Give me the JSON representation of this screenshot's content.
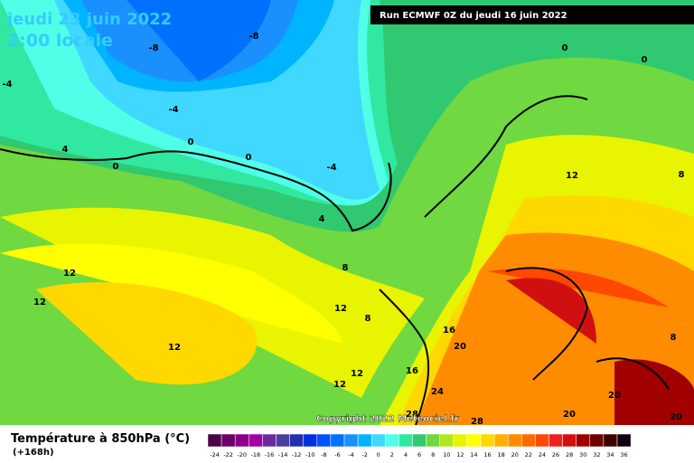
{
  "header": {
    "date": "jeudi 23 juin 2022",
    "time": "2:00 locale",
    "run": "Run ECMWF 0Z du jeudi 16 juin 2022"
  },
  "copyright": "Copyright 2022 Meteociel.fr",
  "legend": {
    "title": "Température à 850hPa (°C)",
    "subtitle": "(+168h)"
  },
  "colorbar": {
    "ticks": [
      -24,
      -22,
      -20,
      -18,
      -16,
      -14,
      -12,
      -10,
      -8,
      -6,
      -4,
      -2,
      0,
      2,
      4,
      6,
      8,
      10,
      12,
      14,
      16,
      18,
      20,
      22,
      24,
      26,
      28,
      30,
      32,
      34,
      36
    ],
    "colors": [
      "#4a0047",
      "#6a006a",
      "#8a0089",
      "#a300a3",
      "#6a2a9e",
      "#4a3fa0",
      "#2030b0",
      "#0030e0",
      "#0050ff",
      "#0070ff",
      "#1a90ff",
      "#00b4ff",
      "#40d8ff",
      "#50ffe8",
      "#30e8a0",
      "#30c870",
      "#70d840",
      "#b0e820",
      "#e8f400",
      "#ffff00",
      "#ffd800",
      "#ffb000",
      "#ff8c00",
      "#ff6a00",
      "#ff4800",
      "#f02020",
      "#d01010",
      "#a00000",
      "#700000",
      "#400000",
      "#100010"
    ]
  },
  "contour_labels": [
    -8,
    -8,
    -4,
    -4,
    -4,
    0,
    0,
    0,
    0,
    0,
    4,
    4,
    8,
    8,
    8,
    8,
    12,
    12,
    12,
    12,
    12,
    12,
    12,
    16,
    16,
    20,
    20,
    20,
    20,
    24,
    28,
    28
  ]
}
